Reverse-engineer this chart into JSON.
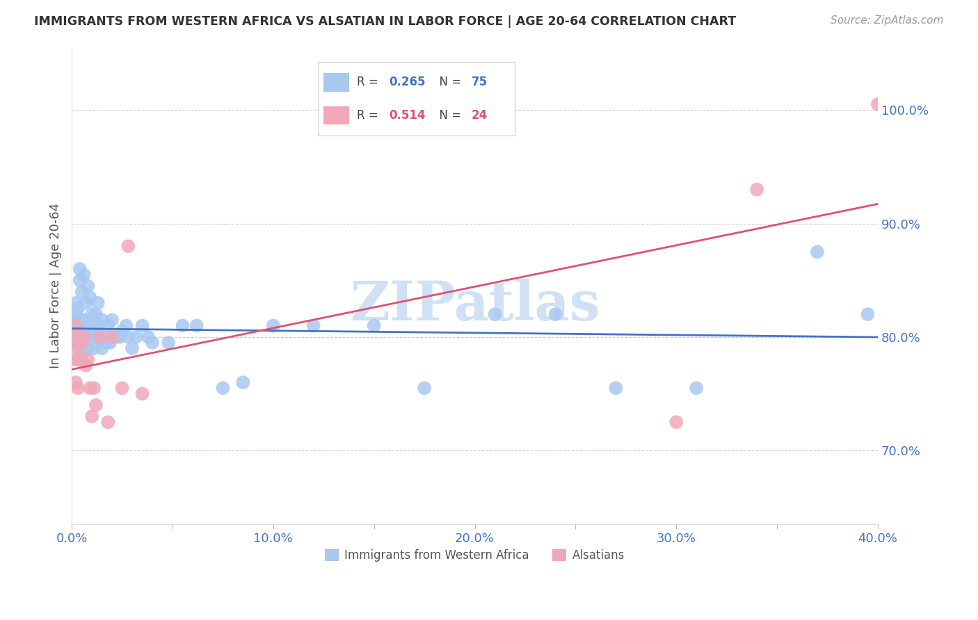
{
  "title": "IMMIGRANTS FROM WESTERN AFRICA VS ALSATIAN IN LABOR FORCE | AGE 20-64 CORRELATION CHART",
  "source": "Source: ZipAtlas.com",
  "ylabel": "In Labor Force | Age 20-64",
  "xlim": [
    0.0,
    0.4
  ],
  "ylim": [
    0.635,
    1.055
  ],
  "yticks_right": [
    0.7,
    0.8,
    0.9,
    1.0
  ],
  "ytick_labels_right": [
    "70.0%",
    "80.0%",
    "90.0%",
    "100.0%"
  ],
  "xticks": [
    0.0,
    0.05,
    0.1,
    0.15,
    0.2,
    0.25,
    0.3,
    0.35,
    0.4
  ],
  "xtick_labels": [
    "0.0%",
    "",
    "10.0%",
    "",
    "20.0%",
    "",
    "30.0%",
    "",
    "40.0%"
  ],
  "blue_color": "#A8C8F0",
  "pink_color": "#F0A8B8",
  "blue_line_color": "#4472C4",
  "pink_line_color": "#E05070",
  "blue_R": 0.265,
  "blue_N": 75,
  "pink_R": 0.514,
  "pink_N": 24,
  "watermark": "ZIPatlas",
  "watermark_color": "#D0E0F5",
  "blue_x": [
    0.001,
    0.001,
    0.001,
    0.001,
    0.002,
    0.002,
    0.002,
    0.002,
    0.002,
    0.003,
    0.003,
    0.003,
    0.003,
    0.003,
    0.004,
    0.004,
    0.004,
    0.004,
    0.005,
    0.005,
    0.005,
    0.005,
    0.006,
    0.006,
    0.006,
    0.007,
    0.007,
    0.007,
    0.008,
    0.008,
    0.008,
    0.009,
    0.009,
    0.01,
    0.01,
    0.011,
    0.011,
    0.012,
    0.012,
    0.013,
    0.013,
    0.014,
    0.015,
    0.015,
    0.016,
    0.017,
    0.018,
    0.019,
    0.02,
    0.021,
    0.022,
    0.024,
    0.025,
    0.027,
    0.028,
    0.03,
    0.032,
    0.035,
    0.038,
    0.04,
    0.048,
    0.055,
    0.062,
    0.075,
    0.085,
    0.1,
    0.12,
    0.15,
    0.175,
    0.21,
    0.24,
    0.27,
    0.31,
    0.37,
    0.395
  ],
  "blue_y": [
    0.805,
    0.8,
    0.81,
    0.815,
    0.795,
    0.8,
    0.81,
    0.82,
    0.83,
    0.78,
    0.795,
    0.805,
    0.815,
    0.825,
    0.79,
    0.805,
    0.85,
    0.86,
    0.785,
    0.8,
    0.815,
    0.84,
    0.8,
    0.815,
    0.855,
    0.795,
    0.81,
    0.83,
    0.79,
    0.8,
    0.845,
    0.8,
    0.835,
    0.8,
    0.82,
    0.79,
    0.81,
    0.8,
    0.82,
    0.81,
    0.83,
    0.8,
    0.79,
    0.815,
    0.8,
    0.795,
    0.81,
    0.795,
    0.815,
    0.8,
    0.8,
    0.8,
    0.805,
    0.81,
    0.8,
    0.79,
    0.8,
    0.81,
    0.8,
    0.795,
    0.795,
    0.81,
    0.81,
    0.755,
    0.76,
    0.81,
    0.81,
    0.81,
    0.755,
    0.82,
    0.82,
    0.755,
    0.755,
    0.875,
    0.82
  ],
  "pink_x": [
    0.001,
    0.001,
    0.002,
    0.002,
    0.003,
    0.003,
    0.004,
    0.005,
    0.006,
    0.007,
    0.008,
    0.009,
    0.01,
    0.011,
    0.012,
    0.014,
    0.018,
    0.02,
    0.025,
    0.028,
    0.035,
    0.3,
    0.34,
    0.4
  ],
  "pink_y": [
    0.8,
    0.78,
    0.81,
    0.76,
    0.79,
    0.755,
    0.78,
    0.795,
    0.8,
    0.775,
    0.78,
    0.755,
    0.73,
    0.755,
    0.74,
    0.8,
    0.725,
    0.8,
    0.755,
    0.88,
    0.75,
    0.725,
    0.93,
    1.005
  ]
}
